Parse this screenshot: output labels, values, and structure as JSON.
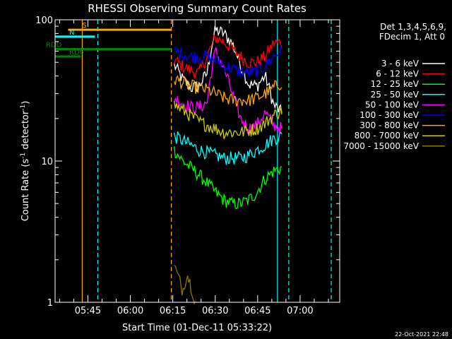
{
  "chart_data": {
    "type": "line",
    "title": "RHESSI Observing Summary Count Rates",
    "xlabel": "Start Time (01-Dec-11 05:33:22)",
    "ylabel_main": "Count Rate (s",
    "ylabel_sup1": "-1",
    "ylabel_mid": " detector",
    "ylabel_sup2": "-1",
    "ylabel_end": ")",
    "y_scale": "log",
    "ylim": [
      1,
      100
    ],
    "xlim_minutes": [
      333.4,
      434
    ],
    "x_ticks": [
      {
        "t": 345,
        "label": "05:45"
      },
      {
        "t": 360,
        "label": "06:00"
      },
      {
        "t": 375,
        "label": "06:15"
      },
      {
        "t": 390,
        "label": "06:30"
      },
      {
        "t": 405,
        "label": "06:45"
      },
      {
        "t": 420,
        "label": "07:00"
      }
    ],
    "y_ticks": [
      {
        "v": 1,
        "label": "1"
      },
      {
        "v": 10,
        "label": "10"
      },
      {
        "v": 100,
        "label": "100"
      }
    ],
    "legend_header": [
      "Det 1,3,4,5,6,9,",
      "FDecim 1, Att 0"
    ],
    "series": [
      {
        "name": "3 - 6 keV",
        "color": "#ffffff",
        "start": 375.5,
        "end": 413.5,
        "levels": [
          48,
          38,
          33,
          34,
          42,
          85,
          80,
          68,
          48,
          35,
          34,
          40,
          25,
          22
        ]
      },
      {
        "name": "6 - 12 keV",
        "color": "#ff0000",
        "start": 375.5,
        "end": 413.5,
        "levels": [
          52,
          47,
          44,
          42,
          55,
          75,
          70,
          62,
          55,
          50,
          50,
          55,
          68,
          70
        ]
      },
      {
        "name": "12 - 25 keV",
        "color": "#00ff00",
        "start": 375.5,
        "end": 413.5,
        "levels": [
          12,
          10,
          9,
          8,
          7,
          6,
          5.3,
          5,
          5,
          5.3,
          6,
          7.5,
          8.5,
          9
        ]
      },
      {
        "name": "25 - 50 keV",
        "color": "#00ffff",
        "start": 375.5,
        "end": 413.5,
        "levels": [
          15,
          14,
          13,
          12,
          11.5,
          11,
          10.5,
          10.5,
          10.5,
          11,
          12,
          13,
          14.5,
          15
        ]
      },
      {
        "name": "50 - 100 keV",
        "color": "#ff00ff",
        "start": 375.5,
        "end": 413.5,
        "levels": [
          28,
          26,
          24,
          24,
          26,
          60,
          45,
          30,
          20,
          17,
          18,
          22,
          18,
          17
        ]
      },
      {
        "name": "100 - 300 keV",
        "color": "#0000ff",
        "start": 375.5,
        "end": 413.5,
        "levels": [
          60,
          58,
          55,
          55,
          55,
          52,
          48,
          45,
          43,
          42,
          43,
          47,
          55,
          60
        ]
      },
      {
        "name": "300 - 800 keV",
        "color": "#ffa500",
        "start": 375.5,
        "end": 413.5,
        "levels": [
          38,
          36,
          34,
          33,
          32,
          30,
          28,
          27,
          27,
          27,
          28,
          30,
          33,
          36
        ]
      },
      {
        "name": "800 - 7000 keV",
        "color": "#cccc00",
        "start": 375.5,
        "end": 413.5,
        "levels": [
          25,
          23,
          21,
          19,
          18,
          17,
          16,
          16,
          16,
          16.5,
          17,
          18.5,
          21,
          23
        ]
      },
      {
        "name": "7000 - 15000 keV",
        "color": "#8b7500",
        "start": 375.5,
        "end": 383,
        "levels": [
          1.8,
          1.5,
          1.2,
          1.6,
          1.3,
          1.0
        ]
      }
    ],
    "state_bars": [
      {
        "label": "S",
        "color": "#ffa500",
        "y": 85,
        "start": 338,
        "end": 374.5
      },
      {
        "label": "N",
        "color": "#00ffff",
        "y": 76,
        "start": 333.4,
        "end": 347.5
      },
      {
        "label": "RDD",
        "color": "#008000",
        "y": 62,
        "start": 333.4,
        "end": 374.5
      },
      {
        "label": "RD6",
        "color": "#008000",
        "y": 55,
        "start": 333.4,
        "end": 342.5
      }
    ],
    "vertical_markers": [
      {
        "t": 343,
        "color": "#ffa500",
        "style": "solid"
      },
      {
        "t": 348.5,
        "color": "#00ffff",
        "style": "dashed"
      },
      {
        "t": 374.5,
        "color": "#ffa500",
        "style": "dashed"
      },
      {
        "t": 412,
        "color": "#00ffff",
        "style": "solid"
      },
      {
        "t": 416,
        "color": "#00ffff",
        "style": "dashed"
      },
      {
        "t": 431,
        "color": "#00ffff",
        "style": "dashed"
      }
    ],
    "colors": {
      "background": "#000000",
      "axes": "#ffffff"
    }
  },
  "footer_timestamp": "22-Oct-2021 22:48"
}
